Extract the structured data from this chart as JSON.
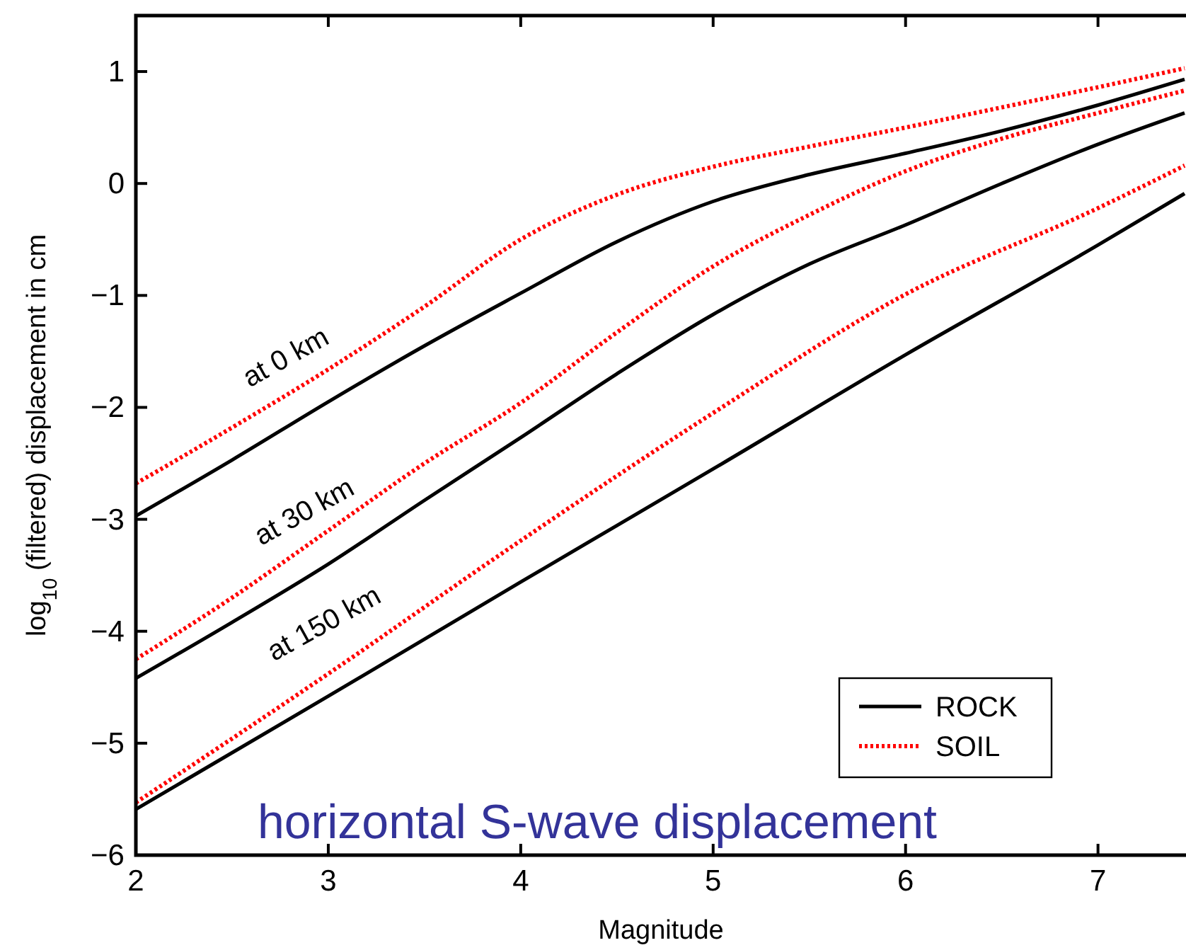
{
  "chart_data": {
    "type": "line",
    "xlabel": "Magnitude",
    "ylabel": "log$_{10}$ (filtered) displacement in cm",
    "xlim": [
      2,
      7.45
    ],
    "ylim": [
      -6,
      1.5
    ],
    "xticks": [
      2,
      3,
      4,
      5,
      6,
      7
    ],
    "yticks": [
      -6,
      -5,
      -4,
      -3,
      -2,
      -1,
      0,
      1
    ],
    "grid": false,
    "legend": "bottom right",
    "series": [
      {
        "name": "ROCK",
        "color": "#000000",
        "line_style": "solid",
        "x": [
          2,
          2.5,
          3,
          3.5,
          4,
          4.5,
          5,
          5.5,
          6,
          6.5,
          7,
          7.45
        ],
        "values": [
          -2.97,
          -2.47,
          -1.95,
          -1.45,
          -0.98,
          -0.52,
          -0.16,
          0.08,
          0.27,
          0.47,
          0.7,
          0.93
        ]
      },
      {
        "name": "SOIL",
        "color": "#ff0000",
        "line_style": "dotted",
        "x": [
          2,
          2.5,
          3,
          3.5,
          4,
          4.5,
          5,
          5.5,
          6,
          6.5,
          7,
          7.45
        ],
        "values": [
          -2.68,
          -2.18,
          -1.66,
          -1.1,
          -0.5,
          -0.1,
          0.15,
          0.33,
          0.5,
          0.68,
          0.86,
          1.03
        ]
      },
      {
        "color": "#000000",
        "line_style": "solid",
        "x": [
          2,
          2.5,
          3,
          3.5,
          4,
          4.5,
          5,
          5.5,
          6,
          6.5,
          7,
          7.45
        ],
        "values": [
          -4.42,
          -3.92,
          -3.4,
          -2.83,
          -2.27,
          -1.7,
          -1.17,
          -0.72,
          -0.37,
          0.0,
          0.35,
          0.63
        ]
      },
      {
        "color": "#ff0000",
        "line_style": "dotted",
        "x": [
          2,
          2.5,
          3,
          3.5,
          4,
          4.5,
          5,
          5.5,
          6,
          6.5,
          7,
          7.45
        ],
        "values": [
          -4.25,
          -3.7,
          -3.1,
          -2.5,
          -1.96,
          -1.33,
          -0.74,
          -0.28,
          0.11,
          0.4,
          0.63,
          0.83
        ]
      },
      {
        "color": "#000000",
        "line_style": "solid",
        "x": [
          2,
          3,
          4,
          5,
          6,
          7,
          7.45
        ],
        "values": [
          -5.59,
          -4.58,
          -3.56,
          -2.55,
          -1.53,
          -0.55,
          -0.09
        ]
      },
      {
        "color": "#ff0000",
        "line_style": "dotted",
        "x": [
          2,
          3,
          4,
          5,
          6,
          7,
          7.45
        ],
        "values": [
          -5.53,
          -4.38,
          -3.19,
          -2.05,
          -0.99,
          -0.22,
          0.16
        ]
      }
    ],
    "annotations": [
      "at 0 km",
      "at 30 km",
      "at 150 km",
      "horizontal S-wave displacement"
    ]
  }
}
